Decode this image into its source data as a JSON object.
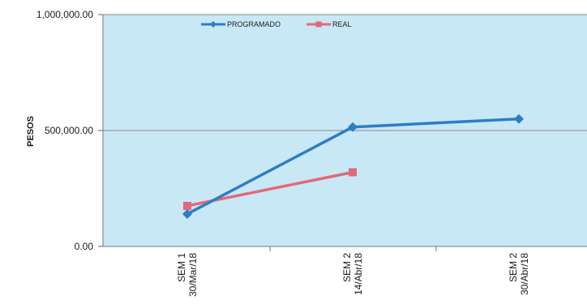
{
  "chart_data": {
    "type": "line",
    "title": "",
    "xlabel": "",
    "ylabel": "PESOS",
    "ylim": [
      0,
      1000000
    ],
    "y_ticks": [
      "1,000,000.00",
      "500,000.00",
      "0.00"
    ],
    "y_tick_values": [
      1000000,
      500000,
      0
    ],
    "categories": [
      {
        "line1": "SEM 1",
        "line2": "30/Mar/18"
      },
      {
        "line1": "SEM 2",
        "line2": "14/Abr/18"
      },
      {
        "line1": "SEM 2",
        "line2": "30/Abr/18"
      }
    ],
    "series": [
      {
        "name": "PROGRAMADO",
        "values": [
          140000,
          515000,
          550000
        ],
        "color": "#2e7dc6",
        "marker": "diamond"
      },
      {
        "name": "REAL",
        "values": [
          175000,
          320000,
          null
        ],
        "color": "#e06a78",
        "marker": "square"
      }
    ],
    "grid": true,
    "legend": "top",
    "plot_background": "#c9e8f6"
  }
}
